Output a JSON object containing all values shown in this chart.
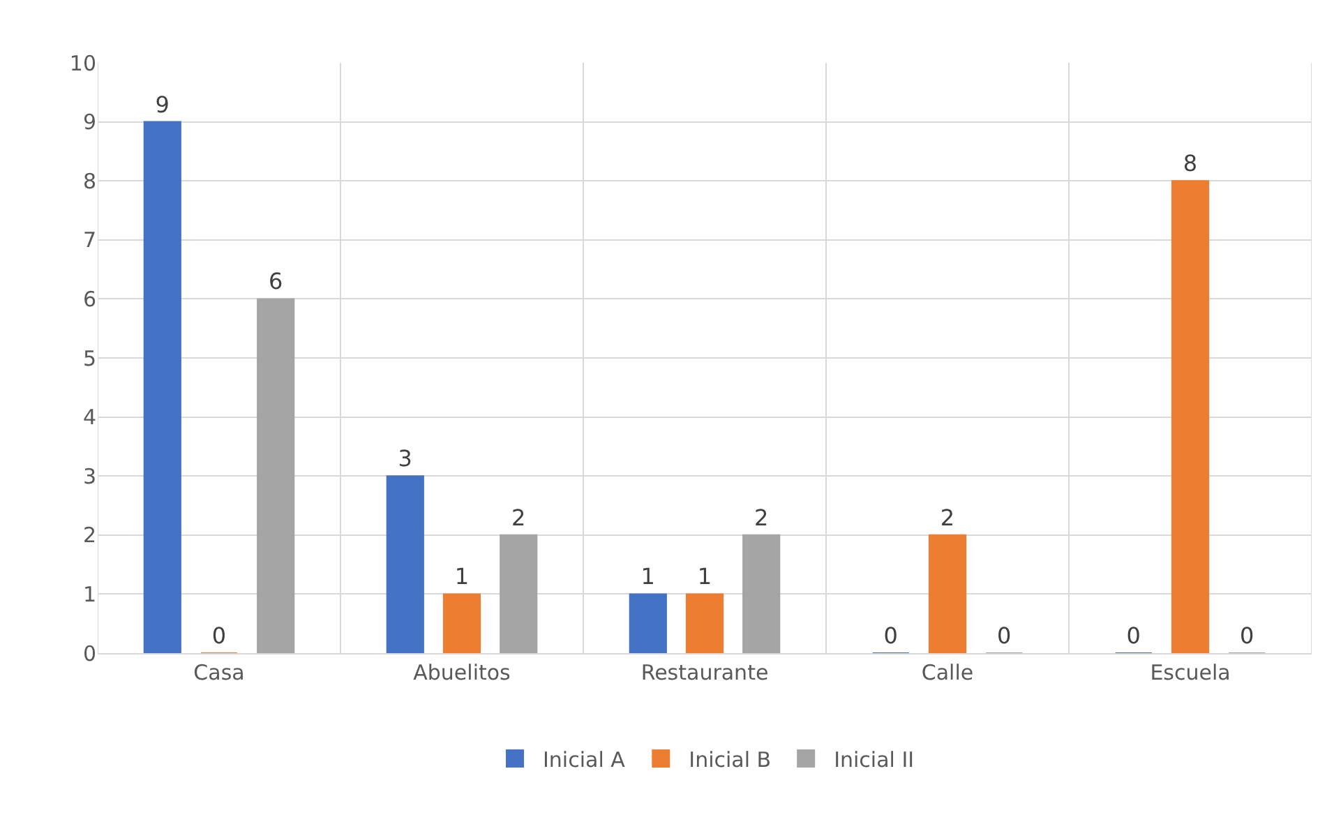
{
  "chart_data": {
    "type": "bar",
    "categories": [
      "Casa",
      "Abuelitos",
      "Restaurante",
      "Calle",
      "Escuela"
    ],
    "series": [
      {
        "name": "Inicial A",
        "color": "#4472c4",
        "values": [
          9,
          3,
          1,
          0,
          0
        ]
      },
      {
        "name": "Inicial B",
        "color": "#ed7d31",
        "values": [
          0,
          1,
          1,
          2,
          8
        ]
      },
      {
        "name": "Inicial II",
        "color": "#a5a5a5",
        "values": [
          6,
          2,
          2,
          0,
          0
        ]
      }
    ],
    "ylim": [
      0,
      10
    ],
    "yticks": [
      0,
      1,
      2,
      3,
      4,
      5,
      6,
      7,
      8,
      9,
      10
    ],
    "grid": true,
    "legend": "bottom",
    "data_labels": true
  }
}
